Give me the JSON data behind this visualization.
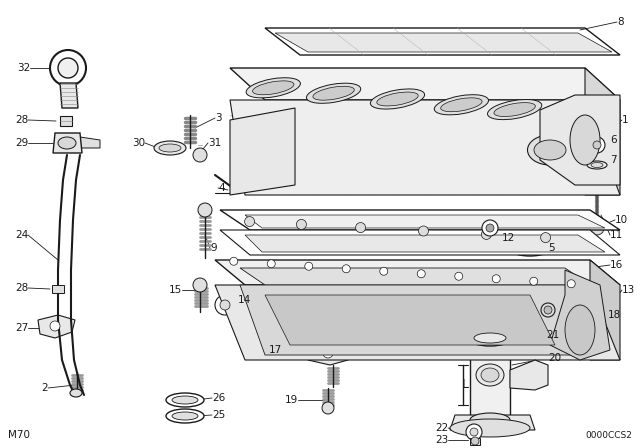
{
  "background_color": "#ffffff",
  "figure_width": 6.4,
  "figure_height": 4.48,
  "dpi": 100,
  "bottom_left_text": "M70",
  "bottom_right_text": "0000CCS2",
  "line_color": "#1a1a1a",
  "label_fontsize": 7.5
}
